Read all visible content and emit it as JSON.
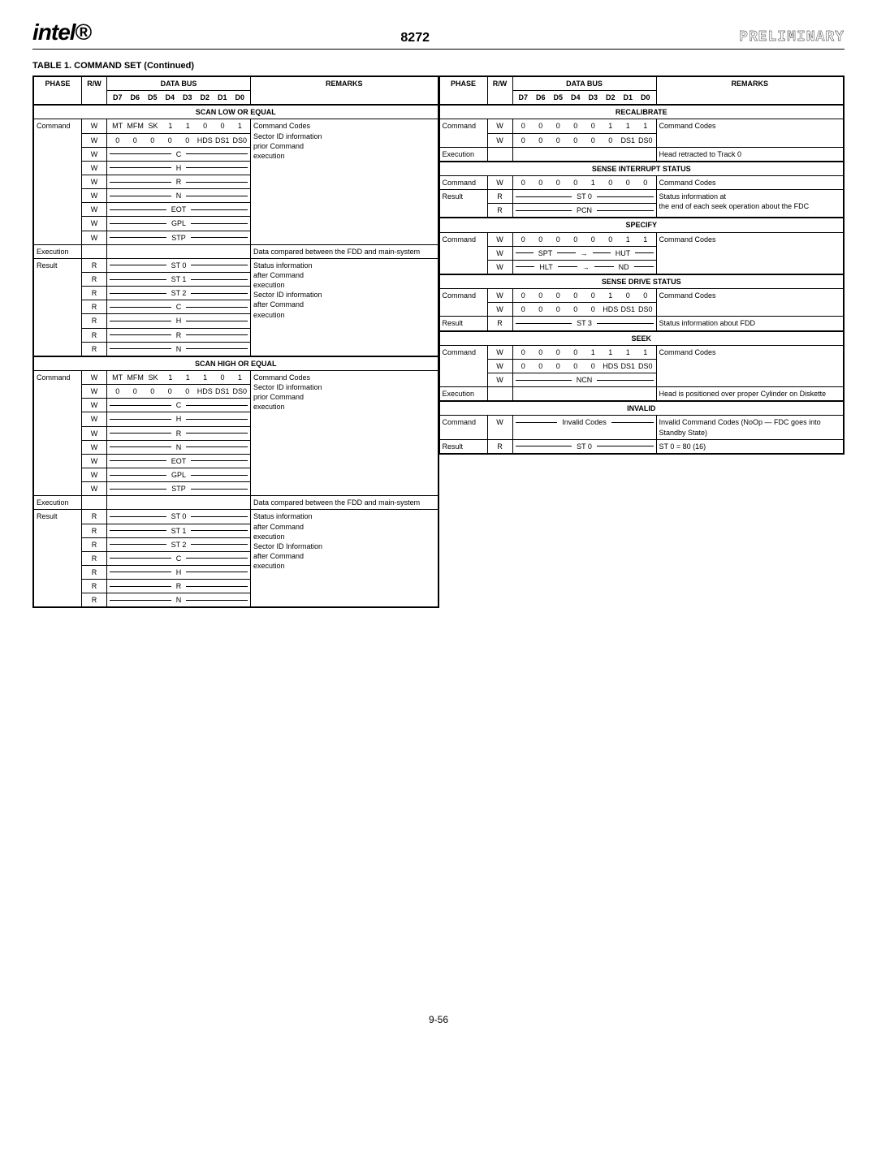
{
  "header": {
    "logo": "intel",
    "chip": "8272",
    "preliminary": "PRELIMINARY"
  },
  "table_title": "TABLE 1.  COMMAND SET (Continued)",
  "col_headers": {
    "phase": "PHASE",
    "rw": "R/W",
    "databus": "DATA BUS",
    "remarks": "REMARKS",
    "bits": [
      "D7",
      "D6",
      "D5",
      "D4",
      "D3",
      "D2",
      "D1",
      "D0"
    ]
  },
  "sections_left": [
    {
      "name": "SCAN LOW OR EQUAL",
      "blocks": [
        {
          "phase": "Command",
          "rows": [
            {
              "rw": "W",
              "bus_bits": [
                "MT",
                "MFM",
                "SK",
                "1",
                "1",
                "0",
                "0",
                "1"
              ],
              "rem": "Command Codes"
            },
            {
              "rw": "W",
              "bus_bits": [
                "0",
                "0",
                "0",
                "0",
                "0",
                "HDS",
                "DS1",
                "DS0"
              ],
              "rem": ""
            },
            {
              "rw": "W",
              "bus_label": "C",
              "rem": "Sector ID information"
            },
            {
              "rw": "W",
              "bus_label": "H",
              "rem": "prior Command"
            },
            {
              "rw": "W",
              "bus_label": "R",
              "rem": "execution"
            },
            {
              "rw": "W",
              "bus_label": "N",
              "rem": ""
            },
            {
              "rw": "W",
              "bus_label": "EOT",
              "rem": ""
            },
            {
              "rw": "W",
              "bus_label": "GPL",
              "rem": ""
            },
            {
              "rw": "W",
              "bus_label": "STP",
              "rem": ""
            }
          ]
        },
        {
          "phase": "Execution",
          "rows": [
            {
              "rw": "",
              "bus_label": "",
              "rem": "Data compared between the FDD and main-system"
            }
          ]
        },
        {
          "phase": "Result",
          "rows": [
            {
              "rw": "R",
              "bus_label": "ST 0",
              "rem": "Status information"
            },
            {
              "rw": "R",
              "bus_label": "ST 1",
              "rem": "after Command"
            },
            {
              "rw": "R",
              "bus_label": "ST 2",
              "rem": "execution"
            },
            {
              "rw": "R",
              "bus_label": "C",
              "rem": ""
            },
            {
              "rw": "R",
              "bus_label": "H",
              "rem": "Sector ID information"
            },
            {
              "rw": "R",
              "bus_label": "R",
              "rem": "after Command"
            },
            {
              "rw": "R",
              "bus_label": "N",
              "rem": "execution"
            }
          ]
        }
      ]
    },
    {
      "name": "SCAN HIGH OR EQUAL",
      "blocks": [
        {
          "phase": "Command",
          "rows": [
            {
              "rw": "W",
              "bus_bits": [
                "MT",
                "MFM",
                "SK",
                "1",
                "1",
                "1",
                "0",
                "1"
              ],
              "rem": "Command Codes"
            },
            {
              "rw": "W",
              "bus_bits": [
                "0",
                "0",
                "0",
                "0",
                "0",
                "HDS",
                "DS1",
                "DS0"
              ],
              "rem": ""
            },
            {
              "rw": "W",
              "bus_label": "C",
              "rem": ""
            },
            {
              "rw": "W",
              "bus_label": "H",
              "rem": "Sector ID information"
            },
            {
              "rw": "W",
              "bus_label": "R",
              "rem": "prior Command"
            },
            {
              "rw": "W",
              "bus_label": "N",
              "rem": "execution"
            },
            {
              "rw": "W",
              "bus_label": "EOT",
              "rem": ""
            },
            {
              "rw": "W",
              "bus_label": "GPL",
              "rem": ""
            },
            {
              "rw": "W",
              "bus_label": "STP",
              "rem": ""
            }
          ]
        },
        {
          "phase": "Execution",
          "rows": [
            {
              "rw": "",
              "bus_label": "",
              "rem": "Data compared between the FDD and main-system"
            }
          ]
        },
        {
          "phase": "Result",
          "rows": [
            {
              "rw": "R",
              "bus_label": "ST 0",
              "rem": "Status information"
            },
            {
              "rw": "R",
              "bus_label": "ST 1",
              "rem": "after Command"
            },
            {
              "rw": "R",
              "bus_label": "ST 2",
              "rem": "execution"
            },
            {
              "rw": "R",
              "bus_label": "C",
              "rem": ""
            },
            {
              "rw": "R",
              "bus_label": "H",
              "rem": "Sector ID Information"
            },
            {
              "rw": "R",
              "bus_label": "R",
              "rem": "after Command"
            },
            {
              "rw": "R",
              "bus_label": "N",
              "rem": "execution"
            }
          ]
        }
      ]
    }
  ],
  "sections_right": [
    {
      "name": "RECALIBRATE",
      "blocks": [
        {
          "phase": "Command",
          "rows": [
            {
              "rw": "W",
              "bus_bits": [
                "0",
                "0",
                "0",
                "0",
                "0",
                "1",
                "1",
                "1"
              ],
              "rem": "Command Codes"
            },
            {
              "rw": "W",
              "bus_bits": [
                "0",
                "0",
                "0",
                "0",
                "0",
                "0",
                "DS1",
                "DS0"
              ],
              "rem": ""
            }
          ]
        },
        {
          "phase": "Execution",
          "rows": [
            {
              "rw": "",
              "bus_label": "",
              "rem": "Head retracted to Track 0"
            }
          ]
        }
      ]
    },
    {
      "name": "SENSE INTERRUPT STATUS",
      "blocks": [
        {
          "phase": "Command",
          "rows": [
            {
              "rw": "W",
              "bus_bits": [
                "0",
                "0",
                "0",
                "0",
                "1",
                "0",
                "0",
                "0"
              ],
              "rem": "Command Codes"
            }
          ]
        },
        {
          "phase": "Result",
          "rows": [
            {
              "rw": "R",
              "bus_label": "ST 0",
              "rem": "Status information at"
            },
            {
              "rw": "R",
              "bus_label": "PCN",
              "rem": "the end of each seek operation about the FDC"
            }
          ]
        }
      ]
    },
    {
      "name": "SPECIFY",
      "blocks": [
        {
          "phase": "Command",
          "rows": [
            {
              "rw": "W",
              "bus_bits": [
                "0",
                "0",
                "0",
                "0",
                "0",
                "0",
                "1",
                "1"
              ],
              "rem": "Command Codes"
            },
            {
              "rw": "W",
              "bus_pair": [
                "SPT",
                "HUT"
              ],
              "rem": ""
            },
            {
              "rw": "W",
              "bus_pair": [
                "HLT",
                "ND"
              ],
              "rem": ""
            }
          ]
        }
      ]
    },
    {
      "name": "SENSE DRIVE STATUS",
      "blocks": [
        {
          "phase": "Command",
          "rows": [
            {
              "rw": "W",
              "bus_bits": [
                "0",
                "0",
                "0",
                "0",
                "0",
                "1",
                "0",
                "0"
              ],
              "rem": "Command Codes"
            },
            {
              "rw": "W",
              "bus_bits": [
                "0",
                "0",
                "0",
                "0",
                "0",
                "HDS",
                "DS1",
                "DS0"
              ],
              "rem": ""
            }
          ]
        },
        {
          "phase": "Result",
          "rows": [
            {
              "rw": "R",
              "bus_label": "ST 3",
              "rem": "Status information about FDD"
            }
          ]
        }
      ]
    },
    {
      "name": "SEEK",
      "blocks": [
        {
          "phase": "Command",
          "rows": [
            {
              "rw": "W",
              "bus_bits": [
                "0",
                "0",
                "0",
                "0",
                "1",
                "1",
                "1",
                "1"
              ],
              "rem": "Command Codes"
            },
            {
              "rw": "W",
              "bus_bits": [
                "0",
                "0",
                "0",
                "0",
                "0",
                "HDS",
                "DS1",
                "DS0"
              ],
              "rem": ""
            },
            {
              "rw": "W",
              "bus_label": "NCN",
              "rem": ""
            }
          ]
        },
        {
          "phase": "Execution",
          "rows": [
            {
              "rw": "",
              "bus_label": "",
              "rem": "Head is positioned over proper Cylinder on Diskette"
            }
          ]
        }
      ]
    },
    {
      "name": "INVALID",
      "blocks": [
        {
          "phase": "Command",
          "rows": [
            {
              "rw": "W",
              "bus_label": "Invalid Codes",
              "rem": "Invalid Command Codes (NoOp — FDC goes into Standby State)"
            }
          ]
        },
        {
          "phase": "Result",
          "rows": [
            {
              "rw": "R",
              "bus_label": "ST 0",
              "rem": "ST 0 = 80\n(16)"
            }
          ]
        }
      ]
    }
  ],
  "footer": "9-56"
}
